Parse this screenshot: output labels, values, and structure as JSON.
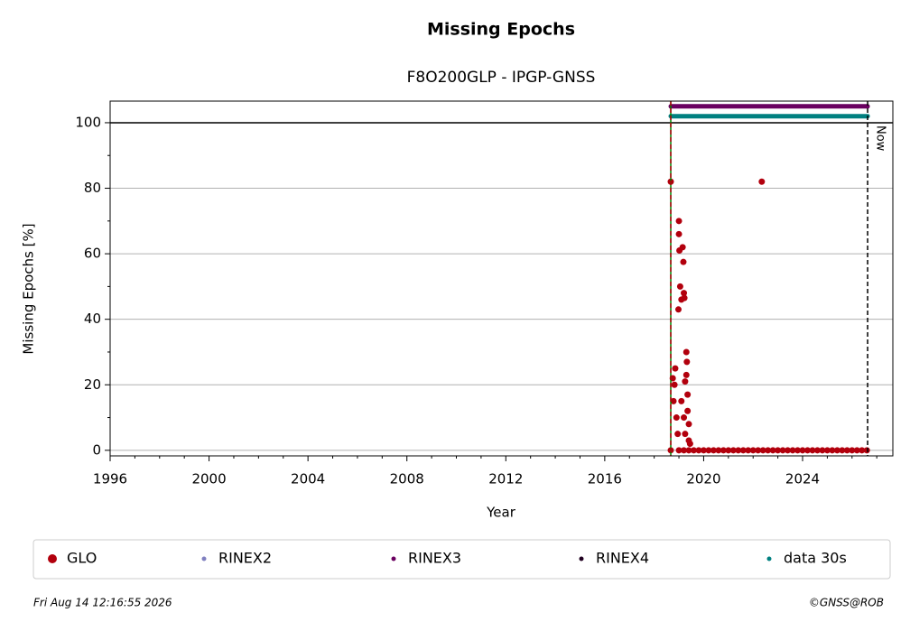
{
  "chart_data": {
    "type": "scatter",
    "title": "Missing Epochs",
    "subtitle": "F8O200GLP - IPGP-GNSS",
    "x_label": "Year",
    "y_label": "Missing Epochs [%]",
    "xlim": [
      1996,
      2027.65
    ],
    "ylim": [
      -1.7,
      106.6
    ],
    "xticks": [
      1996,
      2000,
      2004,
      2008,
      2012,
      2016,
      2020,
      2024
    ],
    "xminorticks": [
      1997,
      1998,
      1999,
      2001,
      2002,
      2003,
      2005,
      2006,
      2007,
      2009,
      2010,
      2011,
      2013,
      2014,
      2015,
      2017,
      2018,
      2019,
      2021,
      2022,
      2023,
      2025,
      2026,
      2027
    ],
    "yticks": [
      0,
      20,
      40,
      60,
      80,
      100
    ],
    "yminorticks": [
      10,
      30,
      50,
      70,
      90
    ],
    "grid": true,
    "legend": "bottom",
    "series": [
      {
        "name": "GLO",
        "color": "#b2000d",
        "marker_size": 3.5,
        "connect": false,
        "x": [
          2018.67,
          2018.67,
          2018.75,
          2018.78,
          2018.82,
          2018.85,
          2018.9,
          2018.95,
          2019.0,
          2019.0,
          2019.02,
          2019.05,
          2018.98,
          2019.1,
          2019.15,
          2019.18,
          2019.2,
          2019.22,
          2019.25,
          2019.3,
          2019.32,
          2019.3,
          2019.35,
          2019.35,
          2019.4,
          2019.4,
          2019.1,
          2019.2,
          2019.25,
          2019.45,
          2019.0,
          2019.2,
          2019.4,
          2022.35,
          2019.6,
          2019.8,
          2020.0,
          2020.2,
          2020.4,
          2020.6,
          2020.8,
          2021.0,
          2021.2,
          2021.4,
          2021.6,
          2021.8,
          2022.0,
          2022.2,
          2022.4,
          2022.6,
          2022.8,
          2023.0,
          2023.2,
          2023.4,
          2023.6,
          2023.8,
          2024.0,
          2024.2,
          2024.4,
          2024.6,
          2024.8,
          2025.0,
          2025.2,
          2025.4,
          2025.6,
          2025.8,
          2026.0,
          2026.2,
          2026.4,
          2026.6
        ],
        "values": [
          82,
          0,
          22,
          15,
          20,
          25,
          10,
          5,
          70,
          66,
          61,
          50,
          43,
          46,
          62,
          57.5,
          48,
          46.5,
          21,
          30,
          27,
          23,
          17,
          12,
          8,
          3,
          15,
          10,
          5,
          2,
          0,
          0,
          0,
          82,
          0,
          0,
          0,
          0,
          0,
          0,
          0,
          0,
          0,
          0,
          0,
          0,
          0,
          0,
          0,
          0,
          0,
          0,
          0,
          0,
          0,
          0,
          0,
          0,
          0,
          0,
          0,
          0,
          0,
          0,
          0,
          0,
          0,
          0,
          0,
          0
        ]
      },
      {
        "name": "RINEX2",
        "color": "#8080c0",
        "marker_size": 2,
        "connect": false,
        "x": [],
        "values": []
      },
      {
        "name": "RINEX3",
        "color": "#6a0060",
        "marker_size": 2.5,
        "connect": true,
        "x": [
          2018.67,
          2026.63
        ],
        "values": [
          105,
          105
        ]
      },
      {
        "name": "RINEX4",
        "color": "#200020",
        "marker_size": 2,
        "connect": false,
        "x": [],
        "values": []
      },
      {
        "name": "data 30s",
        "color": "#008080",
        "marker_size": 2.5,
        "connect": true,
        "x": [
          2018.67,
          2026.63
        ],
        "values": [
          102,
          102
        ]
      }
    ],
    "vlines": [
      {
        "x": 2018.67,
        "color": "#008000",
        "dashed": false
      },
      {
        "x": 2018.67,
        "color": "#b2000d",
        "dashed": true
      },
      {
        "x": 2026.63,
        "color": "#000000",
        "dashed": true
      }
    ],
    "hlines": [
      {
        "y": 100,
        "color": "#000000"
      }
    ],
    "now_label": "Now",
    "footer_left": "Fri Aug 14 12:16:55 2026",
    "footer_right": "©GNSS@ROB"
  }
}
